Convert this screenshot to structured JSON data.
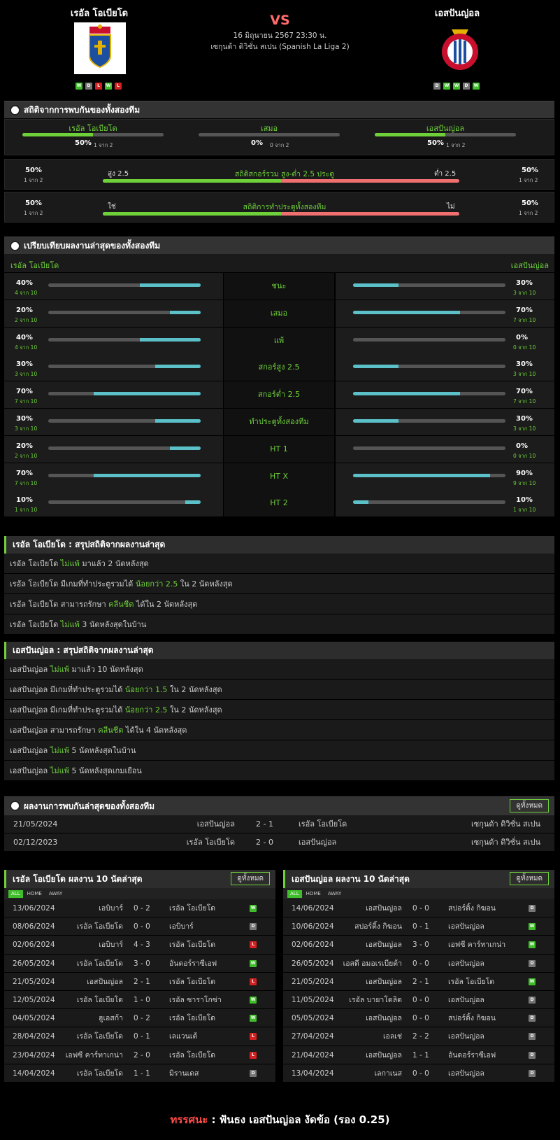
{
  "match": {
    "home": "เรอัล โอเบียโด",
    "away": "เอสปันญ่อล",
    "vs": "VS",
    "datetime": "16 มิถุนายน 2567 23:30 น.",
    "league": "เซกุนด้า ดิวิชั่น สเปน (Spanish La Liga 2)",
    "home_form": [
      "W",
      "D",
      "L",
      "W",
      "L"
    ],
    "away_form": [
      "D",
      "W",
      "W",
      "D",
      "W"
    ]
  },
  "h2h_stats": {
    "title": "สถิติจากการพบกันของทั้งสองทีม",
    "cols": [
      {
        "label": "เรอัล โอเบียโด",
        "pct": "50%",
        "sub": "1 จาก 2",
        "fill": 0.5
      },
      {
        "label": "เสมอ",
        "pct": "0%",
        "sub": "0 จาก 2",
        "fill": 0
      },
      {
        "label": "เอสปันญ่อล",
        "pct": "50%",
        "sub": "1 จาก 2",
        "fill": 0.5
      }
    ],
    "ou": {
      "lp": "50%",
      "ls": "1 จาก 2",
      "ltag": "สูง 2.5",
      "title": "สถิติสกอร์รวม สูง-ต่ำ 2.5 ประตู",
      "rtag": "ต่ำ 2.5",
      "rp": "50%",
      "rs": "1 จาก 2",
      "fill": 0.5
    },
    "btts": {
      "lp": "50%",
      "ls": "1 จาก 2",
      "ltag": "ใช่",
      "title": "สถิติการทำประตูทั้งสองทีม",
      "rtag": "ไม่",
      "rp": "50%",
      "rs": "1 จาก 2",
      "fill": 0.5
    }
  },
  "compare": {
    "title": "เปรียบเทียบผลงานล่าสุดของทั้งสองทีม",
    "left": "เรอัล โอเบียโด",
    "right": "เอสปันญ่อล",
    "rows": [
      {
        "label": "ชนะ",
        "lp": "40%",
        "ls": "4 จาก 10",
        "lf": 0.4,
        "rp": "30%",
        "rs": "3 จาก 10",
        "rf": 0.3
      },
      {
        "label": "เสมอ",
        "lp": "20%",
        "ls": "2 จาก 10",
        "lf": 0.2,
        "rp": "70%",
        "rs": "7 จาก 10",
        "rf": 0.7
      },
      {
        "label": "แพ้",
        "lp": "40%",
        "ls": "4 จาก 10",
        "lf": 0.4,
        "rp": "0%",
        "rs": "0 จาก 10",
        "rf": 0
      },
      {
        "label": "สกอร์สูง 2.5",
        "lp": "30%",
        "ls": "3 จาก 10",
        "lf": 0.3,
        "rp": "30%",
        "rs": "3 จาก 10",
        "rf": 0.3
      },
      {
        "label": "สกอร์ต่ำ 2.5",
        "lp": "70%",
        "ls": "7 จาก 10",
        "lf": 0.7,
        "rp": "70%",
        "rs": "7 จาก 10",
        "rf": 0.7
      },
      {
        "label": "ทำประตูทั้งสองทีม",
        "lp": "30%",
        "ls": "3 จาก 10",
        "lf": 0.3,
        "rp": "30%",
        "rs": "3 จาก 10",
        "rf": 0.3
      },
      {
        "label": "HT 1",
        "lp": "20%",
        "ls": "2 จาก 10",
        "lf": 0.2,
        "rp": "0%",
        "rs": "0 จาก 10",
        "rf": 0
      },
      {
        "label": "HT X",
        "lp": "70%",
        "ls": "7 จาก 10",
        "lf": 0.7,
        "rp": "90%",
        "rs": "9 จาก 10",
        "rf": 0.9
      },
      {
        "label": "HT 2",
        "lp": "10%",
        "ls": "1 จาก 10",
        "lf": 0.1,
        "rp": "10%",
        "rs": "1 จาก 10",
        "rf": 0.1
      }
    ]
  },
  "home_summary": {
    "title": "เรอัล โอเบียโด : สรุปสถิติจากผลงานล่าสุด",
    "rows": [
      {
        "a": "เรอัล โอเบียโด",
        "b": "ไม่แพ้",
        "c": "มาแล้ว 2 นัดหลังสุด"
      },
      {
        "a": "เรอัล โอเบียโด มีเกมที่ทำประตูรวมได้",
        "b": "น้อยกว่า 2.5",
        "c": "ใน 2 นัดหลังสุด"
      },
      {
        "a": "เรอัล โอเบียโด สามารถรักษา",
        "b": "คลีนชีต",
        "c": "ได้ใน 2 นัดหลังสุด"
      },
      {
        "a": "เรอัล โอเบียโด",
        "b": "ไม่แพ้",
        "c": "3 นัดหลังสุดในบ้าน"
      }
    ]
  },
  "away_summary": {
    "title": "เอสปันญ่อล : สรุปสถิติจากผลงานล่าสุด",
    "rows": [
      {
        "a": "เอสปันญ่อล",
        "b": "ไม่แพ้",
        "c": "มาแล้ว 10 นัดหลังสุด"
      },
      {
        "a": "เอสปันญ่อล มีเกมที่ทำประตูรวมได้",
        "b": "น้อยกว่า 1.5",
        "c": "ใน 2 นัดหลังสุด"
      },
      {
        "a": "เอสปันญ่อล มีเกมที่ทำประตูรวมได้",
        "b": "น้อยกว่า 2.5",
        "c": "ใน 2 นัดหลังสุด"
      },
      {
        "a": "เอสปันญ่อล สามารถรักษา",
        "b": "คลีนชีต",
        "c": "ได้ใน 4 นัดหลังสุด"
      },
      {
        "a": "เอสปันญ่อล",
        "b": "ไม่แพ้",
        "c": "5 นัดหลังสุดในบ้าน"
      },
      {
        "a": "เอสปันญ่อล",
        "b": "ไม่แพ้",
        "c": "5 นัดหลังสุดเกมเยือน"
      }
    ]
  },
  "h2h_results": {
    "title": "ผลงานการพบกันล่าสุดของทั้งสองทีม",
    "view_all": "ดูทั้งหมด",
    "rows": [
      {
        "date": "21/05/2024",
        "home": "เอสปันญ่อล",
        "score": "2 - 1",
        "away": "เรอัล โอเบียโด",
        "league": "เซกุนด้า ดิวิชั่น สเปน"
      },
      {
        "date": "02/12/2023",
        "home": "เรอัล โอเบียโด",
        "score": "2 - 0",
        "away": "เอสปันญ่อล",
        "league": "เซกุนด้า ดิวิชั่น สเปน"
      }
    ]
  },
  "tabs": [
    "ALL",
    "HOME",
    "AWAY"
  ],
  "home_last": {
    "title": "เรอัล โอเบียโด ผลงาน 10 นัดล่าสุด",
    "view_all": "ดูทั้งหมด",
    "rows": [
      {
        "date": "13/06/2024",
        "home": "เอบิบาร์",
        "score": "0 - 2",
        "away": "เรอัล โอเบียโด",
        "r": "W"
      },
      {
        "date": "08/06/2024",
        "home": "เรอัล โอเบียโด",
        "score": "0 - 0",
        "away": "เอบิบาร์",
        "r": "D"
      },
      {
        "date": "02/06/2024",
        "home": "เอบิบาร์",
        "score": "4 - 3",
        "away": "เรอัล โอเบียโด",
        "r": "L"
      },
      {
        "date": "26/05/2024",
        "home": "เรอัล โอเบียโด",
        "score": "3 - 0",
        "away": "อันดอร์ราซีเอฟ",
        "r": "W"
      },
      {
        "date": "21/05/2024",
        "home": "เอสปันญ่อล",
        "score": "2 - 1",
        "away": "เรอัล โอเบียโด",
        "r": "L"
      },
      {
        "date": "12/05/2024",
        "home": "เรอัล โอเบียโด",
        "score": "1 - 0",
        "away": "เรอัล ซาราโกซ่า",
        "r": "W"
      },
      {
        "date": "04/05/2024",
        "home": "ฮูเอสก้า",
        "score": "0 - 2",
        "away": "เรอัล โอเบียโด",
        "r": "W"
      },
      {
        "date": "28/04/2024",
        "home": "เรอัล โอเบียโด",
        "score": "0 - 1",
        "away": "เลแวนเต้",
        "r": "L"
      },
      {
        "date": "23/04/2024",
        "home": "เอฟซี คาร์ทาเกน่า",
        "score": "2 - 0",
        "away": "เรอัล โอเบียโด",
        "r": "L"
      },
      {
        "date": "14/04/2024",
        "home": "เรอัล โอเบียโด",
        "score": "1 - 1",
        "away": "มิรานเดส",
        "r": "D"
      }
    ]
  },
  "away_last": {
    "title": "เอสปันญ่อล ผลงาน 10 นัดล่าสุด",
    "view_all": "ดูทั้งหมด",
    "rows": [
      {
        "date": "14/06/2024",
        "home": "เอสปันญ่อล",
        "score": "0 - 0",
        "away": "สปอร์ติ้ง กิฆอน",
        "r": "D"
      },
      {
        "date": "10/06/2024",
        "home": "สปอร์ติ้ง กิฆอน",
        "score": "0 - 1",
        "away": "เอสปันญ่อล",
        "r": "W"
      },
      {
        "date": "02/06/2024",
        "home": "เอสปันญ่อล",
        "score": "3 - 0",
        "away": "เอฟซี คาร์ทาเกน่า",
        "r": "W"
      },
      {
        "date": "26/05/2024",
        "home": "เอสดี อมอเรเบียต้า",
        "score": "0 - 0",
        "away": "เอสปันญ่อล",
        "r": "D"
      },
      {
        "date": "21/05/2024",
        "home": "เอสปันญ่อล",
        "score": "2 - 1",
        "away": "เรอัล โอเบียโด",
        "r": "W"
      },
      {
        "date": "11/05/2024",
        "home": "เรอัล บายาโดลิด",
        "score": "0 - 0",
        "away": "เอสปันญ่อล",
        "r": "D"
      },
      {
        "date": "05/05/2024",
        "home": "เอสปันญ่อล",
        "score": "0 - 0",
        "away": "สปอร์ติ้ง กิฆอน",
        "r": "D"
      },
      {
        "date": "27/04/2024",
        "home": "เอลเช่",
        "score": "2 - 2",
        "away": "เอสปันญ่อล",
        "r": "D"
      },
      {
        "date": "21/04/2024",
        "home": "เอสปันญ่อล",
        "score": "1 - 1",
        "away": "อันดอร์ราซีเอฟ",
        "r": "D"
      },
      {
        "date": "13/04/2024",
        "home": "เลกาเนส",
        "score": "0 - 0",
        "away": "เอสปันญ่อล",
        "r": "D"
      }
    ]
  },
  "verdict": {
    "label": "ทรรศนะ",
    "sep": ":",
    "text": "ฟันธง เอสปันญ่อล งัดข้อ (รอง 0.25)"
  },
  "colors": {
    "accent": "#6fd13a",
    "bar_left": "#5bc0c8",
    "bar_red": "#f07070",
    "win": "#3fbd2a",
    "loss": "#d32020",
    "draw": "#777777"
  }
}
